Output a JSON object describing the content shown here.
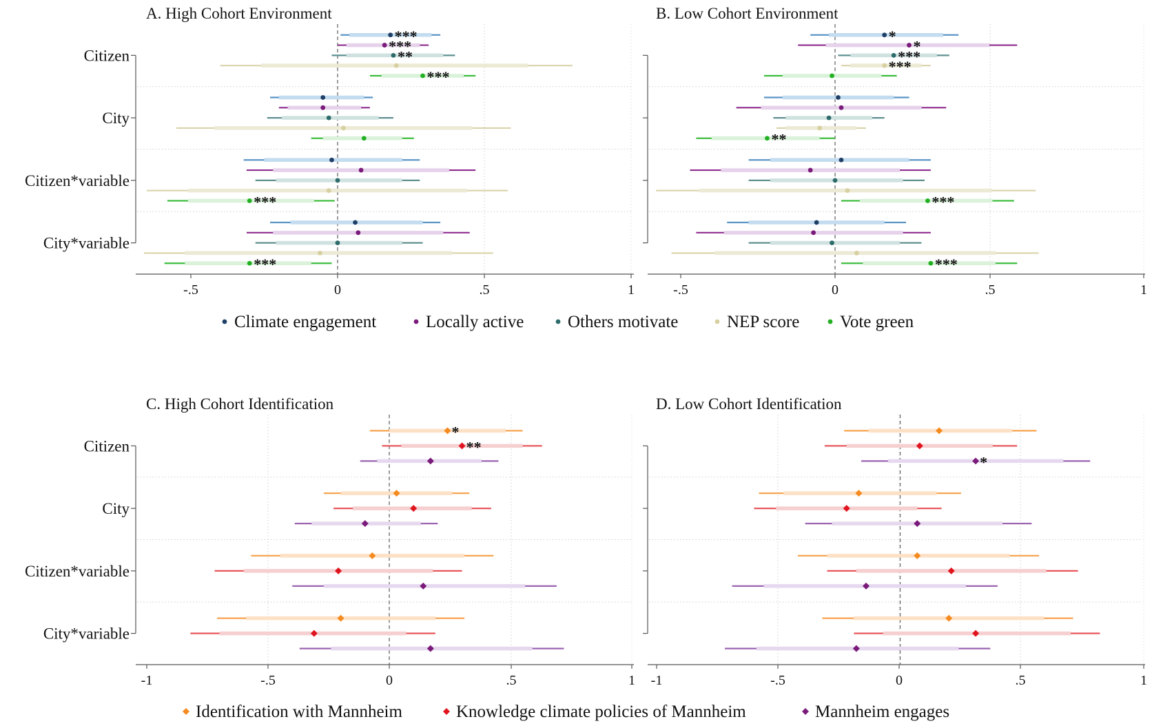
{
  "chart_data": [
    {
      "type": "coefficient-plot",
      "title": "A. High Cohort Environment",
      "categories": [
        "Citizen",
        "City",
        "Citizen*variable",
        "City*variable"
      ],
      "xlim": [
        -0.5,
        1
      ],
      "xticks": [
        -0.5,
        0,
        0.5,
        1
      ],
      "xtick_labels": [
        "-.5",
        "0",
        ".5",
        "1"
      ],
      "reference_line": 0,
      "grid": true,
      "series": [
        {
          "name": "Climate engagement",
          "color": "#1f3f66",
          "light": "#c3dcef",
          "ci": "#5a95c8",
          "marker": "circle",
          "points": [
            {
              "est": 0.18,
              "lo95": 0.01,
              "hi95": 0.35,
              "lo90": 0.04,
              "hi90": 0.32,
              "sig": "***"
            },
            {
              "est": -0.05,
              "lo95": -0.23,
              "hi95": 0.12,
              "lo90": -0.2,
              "hi90": 0.09,
              "sig": ""
            },
            {
              "est": -0.02,
              "lo95": -0.32,
              "hi95": 0.28,
              "lo90": -0.25,
              "hi90": 0.22,
              "sig": ""
            },
            {
              "est": 0.06,
              "lo95": -0.23,
              "hi95": 0.35,
              "lo90": -0.16,
              "hi90": 0.29,
              "sig": ""
            }
          ]
        },
        {
          "name": "Locally active",
          "color": "#7a1a7a",
          "light": "#e6d2ea",
          "ci": "#8e2a8e",
          "marker": "circle",
          "points": [
            {
              "est": 0.16,
              "lo95": 0.0,
              "hi95": 0.31,
              "lo90": 0.03,
              "hi90": 0.28,
              "sig": "***"
            },
            {
              "est": -0.05,
              "lo95": -0.2,
              "hi95": 0.11,
              "lo90": -0.17,
              "hi90": 0.08,
              "sig": ""
            },
            {
              "est": 0.08,
              "lo95": -0.31,
              "hi95": 0.47,
              "lo90": -0.22,
              "hi90": 0.38,
              "sig": ""
            },
            {
              "est": 0.07,
              "lo95": -0.31,
              "hi95": 0.45,
              "lo90": -0.22,
              "hi90": 0.36,
              "sig": ""
            }
          ]
        },
        {
          "name": "Others motivate",
          "color": "#2e6b6b",
          "light": "#cfe2e0",
          "ci": "#5f8f8f",
          "marker": "circle",
          "points": [
            {
              "est": 0.19,
              "lo95": -0.02,
              "hi95": 0.4,
              "lo90": 0.03,
              "hi90": 0.36,
              "sig": "**"
            },
            {
              "est": -0.03,
              "lo95": -0.24,
              "hi95": 0.19,
              "lo90": -0.19,
              "hi90": 0.14,
              "sig": ""
            },
            {
              "est": 0.0,
              "lo95": -0.28,
              "hi95": 0.28,
              "lo90": -0.21,
              "hi90": 0.22,
              "sig": ""
            },
            {
              "est": 0.0,
              "lo95": -0.28,
              "hi95": 0.29,
              "lo90": -0.21,
              "hi90": 0.22,
              "sig": ""
            }
          ]
        },
        {
          "name": "NEP score",
          "color": "#d7d0a0",
          "light": "#ece9d4",
          "ci": "#d9d3aa",
          "marker": "circle",
          "points": [
            {
              "est": 0.2,
              "lo95": -0.4,
              "hi95": 0.8,
              "lo90": -0.26,
              "hi90": 0.65,
              "sig": ""
            },
            {
              "est": 0.02,
              "lo95": -0.55,
              "hi95": 0.59,
              "lo90": -0.42,
              "hi90": 0.46,
              "sig": ""
            },
            {
              "est": -0.03,
              "lo95": -0.65,
              "hi95": 0.58,
              "lo90": -0.51,
              "hi90": 0.44,
              "sig": ""
            },
            {
              "est": -0.06,
              "lo95": -0.66,
              "hi95": 0.53,
              "lo90": -0.52,
              "hi90": 0.39,
              "sig": ""
            }
          ]
        },
        {
          "name": "Vote green",
          "color": "#22b022",
          "light": "#d9f2d9",
          "ci": "#3cbd3c",
          "marker": "circle",
          "points": [
            {
              "est": 0.29,
              "lo95": 0.11,
              "hi95": 0.47,
              "lo90": 0.15,
              "hi90": 0.43,
              "sig": "***"
            },
            {
              "est": 0.09,
              "lo95": -0.09,
              "hi95": 0.26,
              "lo90": -0.05,
              "hi90": 0.22,
              "sig": ""
            },
            {
              "est": -0.3,
              "lo95": -0.58,
              "hi95": -0.01,
              "lo90": -0.51,
              "hi90": -0.08,
              "sig": "***"
            },
            {
              "est": -0.3,
              "lo95": -0.59,
              "hi95": -0.02,
              "lo90": -0.52,
              "hi90": -0.09,
              "sig": "***"
            }
          ]
        }
      ]
    },
    {
      "type": "coefficient-plot",
      "title": "B. Low Cohort Environment",
      "categories": [
        "Citizen",
        "City",
        "Citizen*variable",
        "City*variable"
      ],
      "xlim": [
        -0.5,
        1
      ],
      "xticks": [
        -0.5,
        0,
        0.5,
        1
      ],
      "xtick_labels": [
        "-.5",
        "0",
        ".5",
        "1"
      ],
      "reference_line": 0,
      "grid": true,
      "series": [
        {
          "name": "Climate engagement",
          "color": "#1f3f66",
          "light": "#c3dcef",
          "ci": "#5a95c8",
          "marker": "circle",
          "points": [
            {
              "est": 0.16,
              "lo95": -0.08,
              "hi95": 0.4,
              "lo90": -0.02,
              "hi90": 0.35,
              "sig": "*"
            },
            {
              "est": 0.01,
              "lo95": -0.23,
              "hi95": 0.24,
              "lo90": -0.17,
              "hi90": 0.19,
              "sig": ""
            },
            {
              "est": 0.02,
              "lo95": -0.28,
              "hi95": 0.31,
              "lo90": -0.21,
              "hi90": 0.24,
              "sig": ""
            },
            {
              "est": -0.06,
              "lo95": -0.35,
              "hi95": 0.23,
              "lo90": -0.28,
              "hi90": 0.16,
              "sig": ""
            }
          ]
        },
        {
          "name": "Locally active",
          "color": "#7a1a7a",
          "light": "#e6d2ea",
          "ci": "#8e2a8e",
          "marker": "circle",
          "points": [
            {
              "est": 0.24,
              "lo95": -0.12,
              "hi95": 0.59,
              "lo90": -0.03,
              "hi90": 0.5,
              "sig": "*"
            },
            {
              "est": 0.02,
              "lo95": -0.32,
              "hi95": 0.36,
              "lo90": -0.24,
              "hi90": 0.28,
              "sig": ""
            },
            {
              "est": -0.08,
              "lo95": -0.47,
              "hi95": 0.31,
              "lo90": -0.37,
              "hi90": 0.21,
              "sig": ""
            },
            {
              "est": -0.07,
              "lo95": -0.45,
              "hi95": 0.31,
              "lo90": -0.36,
              "hi90": 0.22,
              "sig": ""
            }
          ]
        },
        {
          "name": "Others motivate",
          "color": "#2e6b6b",
          "light": "#cfe2e0",
          "ci": "#5f8f8f",
          "marker": "circle",
          "points": [
            {
              "est": 0.19,
              "lo95": 0.01,
              "hi95": 0.37,
              "lo90": 0.05,
              "hi90": 0.33,
              "sig": "***"
            },
            {
              "est": -0.02,
              "lo95": -0.2,
              "hi95": 0.16,
              "lo90": -0.16,
              "hi90": 0.12,
              "sig": ""
            },
            {
              "est": 0.0,
              "lo95": -0.28,
              "hi95": 0.29,
              "lo90": -0.21,
              "hi90": 0.22,
              "sig": ""
            },
            {
              "est": -0.01,
              "lo95": -0.28,
              "hi95": 0.28,
              "lo90": -0.21,
              "hi90": 0.21,
              "sig": ""
            }
          ]
        },
        {
          "name": "NEP score",
          "color": "#d7d0a0",
          "light": "#ece9d4",
          "ci": "#d9d3aa",
          "marker": "circle",
          "points": [
            {
              "est": 0.16,
              "lo95": 0.02,
              "hi95": 0.31,
              "lo90": 0.05,
              "hi90": 0.28,
              "sig": "***"
            },
            {
              "est": -0.05,
              "lo95": -0.19,
              "hi95": 0.1,
              "lo90": -0.16,
              "hi90": 0.07,
              "sig": ""
            },
            {
              "est": 0.04,
              "lo95": -0.58,
              "hi95": 0.65,
              "lo90": -0.44,
              "hi90": 0.51,
              "sig": ""
            },
            {
              "est": 0.07,
              "lo95": -0.53,
              "hi95": 0.66,
              "lo90": -0.39,
              "hi90": 0.52,
              "sig": ""
            }
          ]
        },
        {
          "name": "Vote green",
          "color": "#22b022",
          "light": "#d9f2d9",
          "ci": "#3cbd3c",
          "marker": "circle",
          "points": [
            {
              "est": -0.01,
              "lo95": -0.23,
              "hi95": 0.2,
              "lo90": -0.17,
              "hi90": 0.15,
              "sig": ""
            },
            {
              "est": -0.22,
              "lo95": -0.45,
              "hi95": 0.0,
              "lo90": -0.4,
              "hi90": -0.05,
              "sig": "**"
            },
            {
              "est": 0.3,
              "lo95": 0.02,
              "hi95": 0.58,
              "lo90": 0.08,
              "hi90": 0.51,
              "sig": "***"
            },
            {
              "est": 0.31,
              "lo95": 0.02,
              "hi95": 0.59,
              "lo90": 0.09,
              "hi90": 0.52,
              "sig": "***"
            }
          ]
        }
      ]
    },
    {
      "type": "coefficient-plot",
      "title": "C. High Cohort Identification",
      "categories": [
        "Citizen",
        "City",
        "Citizen*variable",
        "City*variable"
      ],
      "xlim": [
        -1,
        1
      ],
      "xticks": [
        -1,
        -0.5,
        0,
        0.5,
        1
      ],
      "xtick_labels": [
        "-1",
        "-.5",
        "0",
        ".5",
        "1"
      ],
      "reference_line": 0,
      "grid": true,
      "series": [
        {
          "name": "Identification with Mannheim",
          "color": "#f58a1f",
          "light": "#fde1c6",
          "ci": "#f7a34f",
          "marker": "diamond",
          "points": [
            {
              "est": 0.24,
              "lo95": -0.08,
              "hi95": 0.55,
              "lo90": 0.0,
              "hi90": 0.48,
              "sig": "*"
            },
            {
              "est": 0.03,
              "lo95": -0.27,
              "hi95": 0.33,
              "lo90": -0.2,
              "hi90": 0.26,
              "sig": ""
            },
            {
              "est": -0.07,
              "lo95": -0.57,
              "hi95": 0.43,
              "lo90": -0.45,
              "hi90": 0.31,
              "sig": ""
            },
            {
              "est": -0.2,
              "lo95": -0.71,
              "hi95": 0.31,
              "lo90": -0.59,
              "hi90": 0.19,
              "sig": ""
            }
          ]
        },
        {
          "name": "Knowledge climate policies of Mannheim",
          "color": "#e0141e",
          "light": "#f6cfd0",
          "ci": "#e8555a",
          "marker": "diamond",
          "points": [
            {
              "est": 0.3,
              "lo95": -0.03,
              "hi95": 0.63,
              "lo90": 0.05,
              "hi90": 0.55,
              "sig": "**"
            },
            {
              "est": 0.1,
              "lo95": -0.23,
              "hi95": 0.42,
              "lo90": -0.15,
              "hi90": 0.34,
              "sig": ""
            },
            {
              "est": -0.21,
              "lo95": -0.72,
              "hi95": 0.3,
              "lo90": -0.6,
              "hi90": 0.18,
              "sig": ""
            },
            {
              "est": -0.31,
              "lo95": -0.82,
              "hi95": 0.19,
              "lo90": -0.7,
              "hi90": 0.07,
              "sig": ""
            }
          ]
        },
        {
          "name": "Mannheim engages",
          "color": "#7a1a7a",
          "light": "#e6d9ef",
          "ci": "#9a63b0",
          "marker": "diamond",
          "points": [
            {
              "est": 0.17,
              "lo95": -0.12,
              "hi95": 0.45,
              "lo90": -0.05,
              "hi90": 0.38,
              "sig": ""
            },
            {
              "est": -0.1,
              "lo95": -0.39,
              "hi95": 0.2,
              "lo90": -0.32,
              "hi90": 0.13,
              "sig": ""
            },
            {
              "est": 0.14,
              "lo95": -0.4,
              "hi95": 0.69,
              "lo90": -0.27,
              "hi90": 0.56,
              "sig": ""
            },
            {
              "est": 0.17,
              "lo95": -0.37,
              "hi95": 0.72,
              "lo90": -0.24,
              "hi90": 0.59,
              "sig": ""
            }
          ]
        }
      ]
    },
    {
      "type": "coefficient-plot",
      "title": "D. Low Cohort Identification",
      "categories": [
        "Citizen",
        "City",
        "Citizen*variable",
        "City*variable"
      ],
      "xlim": [
        -1,
        1
      ],
      "xticks": [
        -1,
        -0.5,
        0,
        0.5,
        1
      ],
      "xtick_labels": [
        "-1",
        "-.5",
        "0",
        ".5",
        "1"
      ],
      "reference_line": 0,
      "grid": true,
      "series": [
        {
          "name": "Identification with Mannheim",
          "color": "#f58a1f",
          "light": "#fde1c6",
          "ci": "#f7a34f",
          "marker": "diamond",
          "points": [
            {
              "est": 0.16,
              "lo95": -0.23,
              "hi95": 0.56,
              "lo90": -0.13,
              "hi90": 0.46,
              "sig": ""
            },
            {
              "est": -0.17,
              "lo95": -0.58,
              "hi95": 0.25,
              "lo90": -0.48,
              "hi90": 0.15,
              "sig": ""
            },
            {
              "est": 0.07,
              "lo95": -0.42,
              "hi95": 0.57,
              "lo90": -0.3,
              "hi90": 0.45,
              "sig": ""
            },
            {
              "est": 0.2,
              "lo95": -0.32,
              "hi95": 0.71,
              "lo90": -0.19,
              "hi90": 0.59,
              "sig": ""
            }
          ]
        },
        {
          "name": "Knowledge climate policies of Mannheim",
          "color": "#e0141e",
          "light": "#f6cfd0",
          "ci": "#e8555a",
          "marker": "diamond",
          "points": [
            {
              "est": 0.08,
              "lo95": -0.31,
              "hi95": 0.48,
              "lo90": -0.22,
              "hi90": 0.38,
              "sig": ""
            },
            {
              "est": -0.22,
              "lo95": -0.6,
              "hi95": 0.17,
              "lo90": -0.51,
              "hi90": 0.07,
              "sig": ""
            },
            {
              "est": 0.21,
              "lo95": -0.3,
              "hi95": 0.73,
              "lo90": -0.18,
              "hi90": 0.6,
              "sig": ""
            },
            {
              "est": 0.31,
              "lo95": -0.19,
              "hi95": 0.82,
              "lo90": -0.07,
              "hi90": 0.7,
              "sig": ""
            }
          ]
        },
        {
          "name": "Mannheim engages",
          "color": "#7a1a7a",
          "light": "#e6d9ef",
          "ci": "#9a63b0",
          "marker": "diamond",
          "points": [
            {
              "est": 0.31,
              "lo95": -0.16,
              "hi95": 0.78,
              "lo90": -0.05,
              "hi90": 0.67,
              "sig": "*"
            },
            {
              "est": 0.07,
              "lo95": -0.39,
              "hi95": 0.54,
              "lo90": -0.28,
              "hi90": 0.42,
              "sig": ""
            },
            {
              "est": -0.14,
              "lo95": -0.69,
              "hi95": 0.4,
              "lo90": -0.56,
              "hi90": 0.27,
              "sig": ""
            },
            {
              "est": -0.18,
              "lo95": -0.72,
              "hi95": 0.37,
              "lo90": -0.59,
              "hi90": 0.24,
              "sig": ""
            }
          ]
        }
      ]
    }
  ],
  "legends": [
    {
      "entries": [
        "Climate engagement",
        "Locally active",
        "Others motivate",
        "NEP score",
        "Vote green"
      ],
      "colors": [
        "#1f3f66",
        "#7a1a7a",
        "#2e6b6b",
        "#d7d0a0",
        "#22b022"
      ],
      "marker": "circle"
    },
    {
      "entries": [
        "Identification with Mannheim",
        "Knowledge climate policies of Mannheim",
        "Mannheim engages"
      ],
      "colors": [
        "#f58a1f",
        "#e0141e",
        "#7a1a7a"
      ],
      "marker": "diamond"
    }
  ]
}
